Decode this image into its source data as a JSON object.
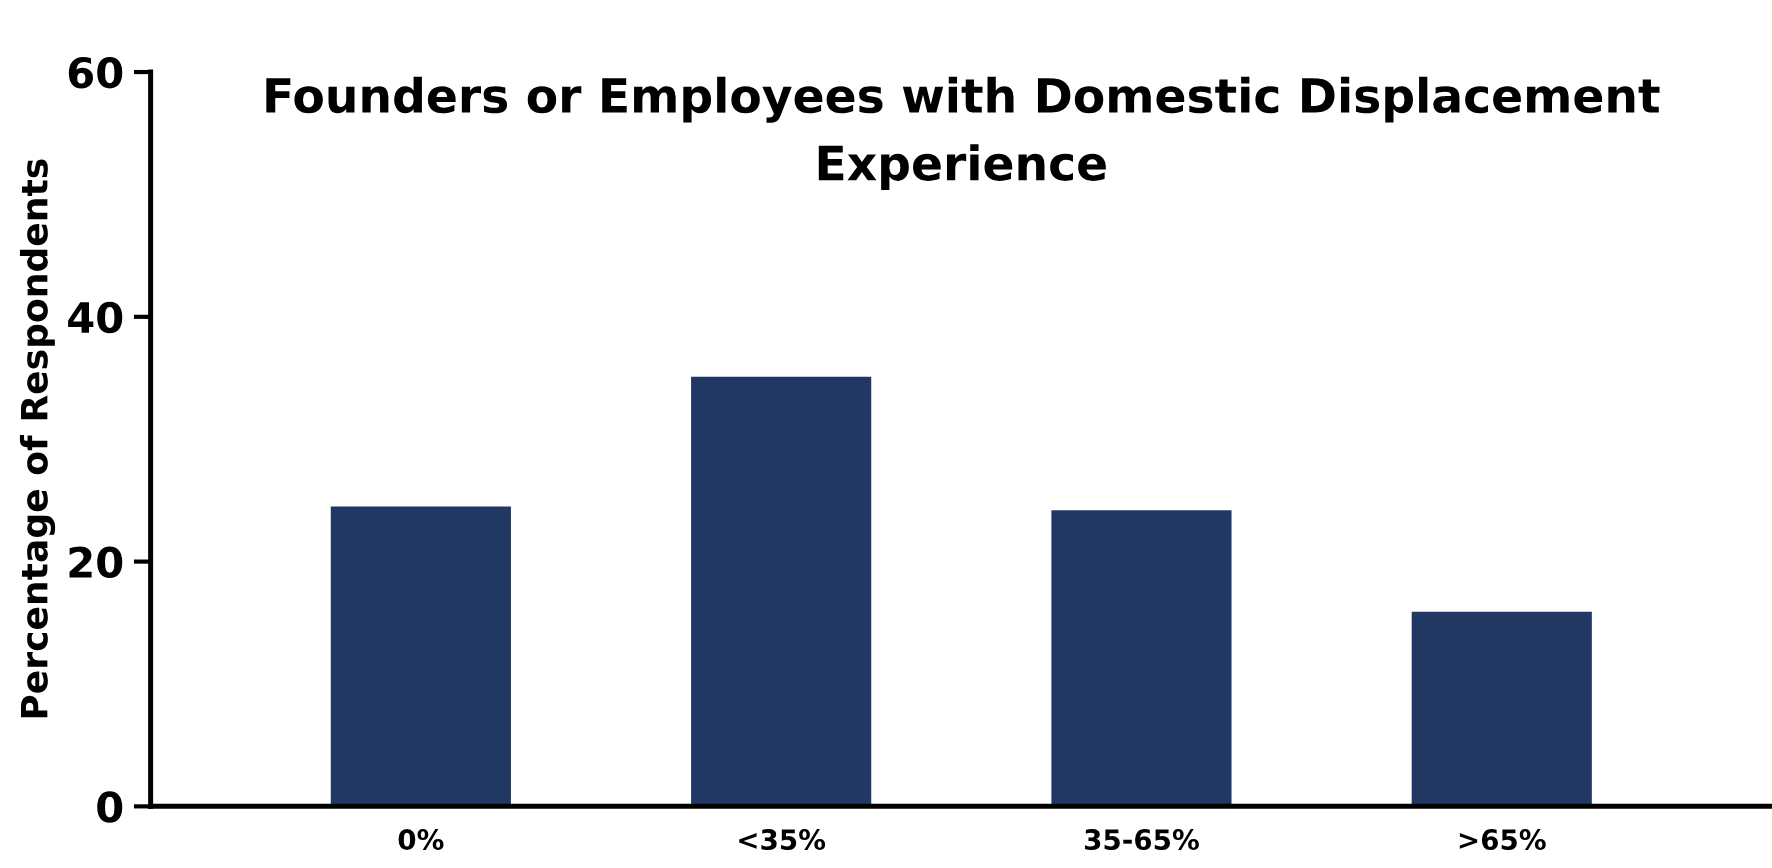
{
  "chart_data": {
    "type": "bar",
    "title": "Founders or Employees with Domestic Displacement\nExperience",
    "ylabel": "Percentage of Respondents",
    "categories": [
      "0%",
      "<35%",
      "35-65%",
      ">65%"
    ],
    "values": [
      24.5,
      35.1,
      24.2,
      15.9
    ],
    "color": "#213764",
    "ylim": [
      0,
      60
    ],
    "yticks": [
      0,
      20,
      40,
      60
    ],
    "grid": false,
    "legend": false
  }
}
